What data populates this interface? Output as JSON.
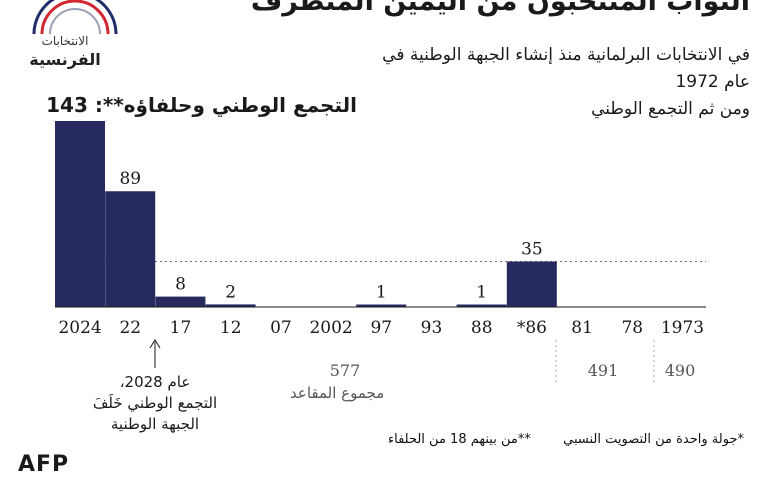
{
  "header": {
    "title": "النواب المنتخبون من اليمين المتطرف",
    "subtitle_line1": "في الانتخابات البرلمانية منذ إنشاء الجبهة الوطنية في عام 1972",
    "subtitle_line2": "ومن ثم التجمع الوطني",
    "headline": "التجمع الوطني وحلفاؤه**: 143"
  },
  "logo": {
    "line1": "الانتخابات",
    "line2": "الفرنسية",
    "colors": [
      "#1f2d6b",
      "#ffffff",
      "#d22630"
    ]
  },
  "chart_data": {
    "type": "bar",
    "categories": [
      "2024",
      "22",
      "17",
      "12",
      "07",
      "2002",
      "97",
      "93",
      "88",
      "*86",
      "81",
      "78",
      "1973"
    ],
    "values": [
      143,
      89,
      8,
      2,
      0,
      0,
      1,
      0,
      1,
      35,
      0,
      0,
      0
    ],
    "data_labels": [
      "",
      "89",
      "8",
      "2",
      "",
      "",
      "1",
      "",
      "1",
      "35",
      "",
      "",
      ""
    ],
    "ylim": [
      0,
      150
    ],
    "reference_line": 35,
    "bar_color": "#262a5e",
    "groups": [
      {
        "label": "577",
        "caption": "مجموع المقاعد"
      },
      {
        "label": "491",
        "caption": ""
      },
      {
        "label": "490",
        "caption": ""
      }
    ]
  },
  "annotation": {
    "line1": "عام 2028،",
    "line2": "التجمع الوطني خَلَفَ",
    "line3": "الجبهة الوطنية"
  },
  "notes": {
    "note1": "*جولة واحدة من التصويت النسبي",
    "note2": "**من بينهم 18 من الحلفاء"
  },
  "footer": {
    "brand": "AFP"
  }
}
